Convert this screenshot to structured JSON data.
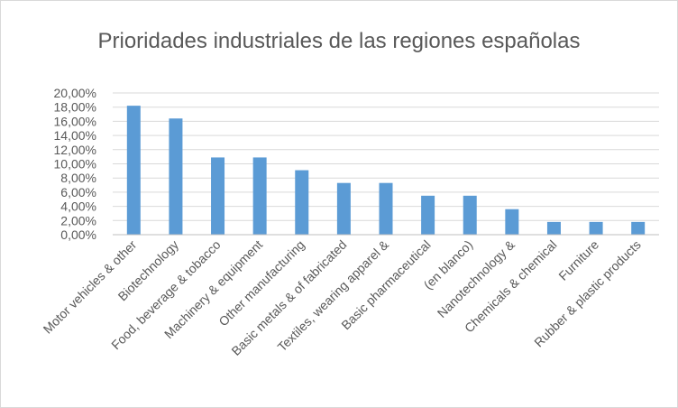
{
  "chart_data": {
    "type": "bar",
    "title": "Prioridades industriales de las regiones españolas",
    "xlabel": "",
    "ylabel": "",
    "ylim": [
      0,
      20
    ],
    "y_ticks": [
      "0,00%",
      "2,00%",
      "4,00%",
      "6,00%",
      "8,00%",
      "10,00%",
      "12,00%",
      "14,00%",
      "16,00%",
      "18,00%",
      "20,00%"
    ],
    "categories": [
      "Motor vehicles & other",
      "Biotechnology",
      "Food, beverage & tobacco",
      "Machinery & equipment",
      "Other manufacturing",
      "Basic metals & of fabricated",
      "Textiles, wearing apparel &",
      "Basic pharmaceutical",
      "(en blanco)",
      "Nanotechnology &",
      "Chemicals & chemical",
      "Furniture",
      "Rubber & plastic products"
    ],
    "values": [
      18.2,
      16.4,
      10.9,
      10.9,
      9.1,
      7.3,
      7.3,
      5.5,
      5.5,
      3.6,
      1.8,
      1.8,
      1.8
    ],
    "grid": true,
    "bar_color": "#5b9bd5"
  }
}
